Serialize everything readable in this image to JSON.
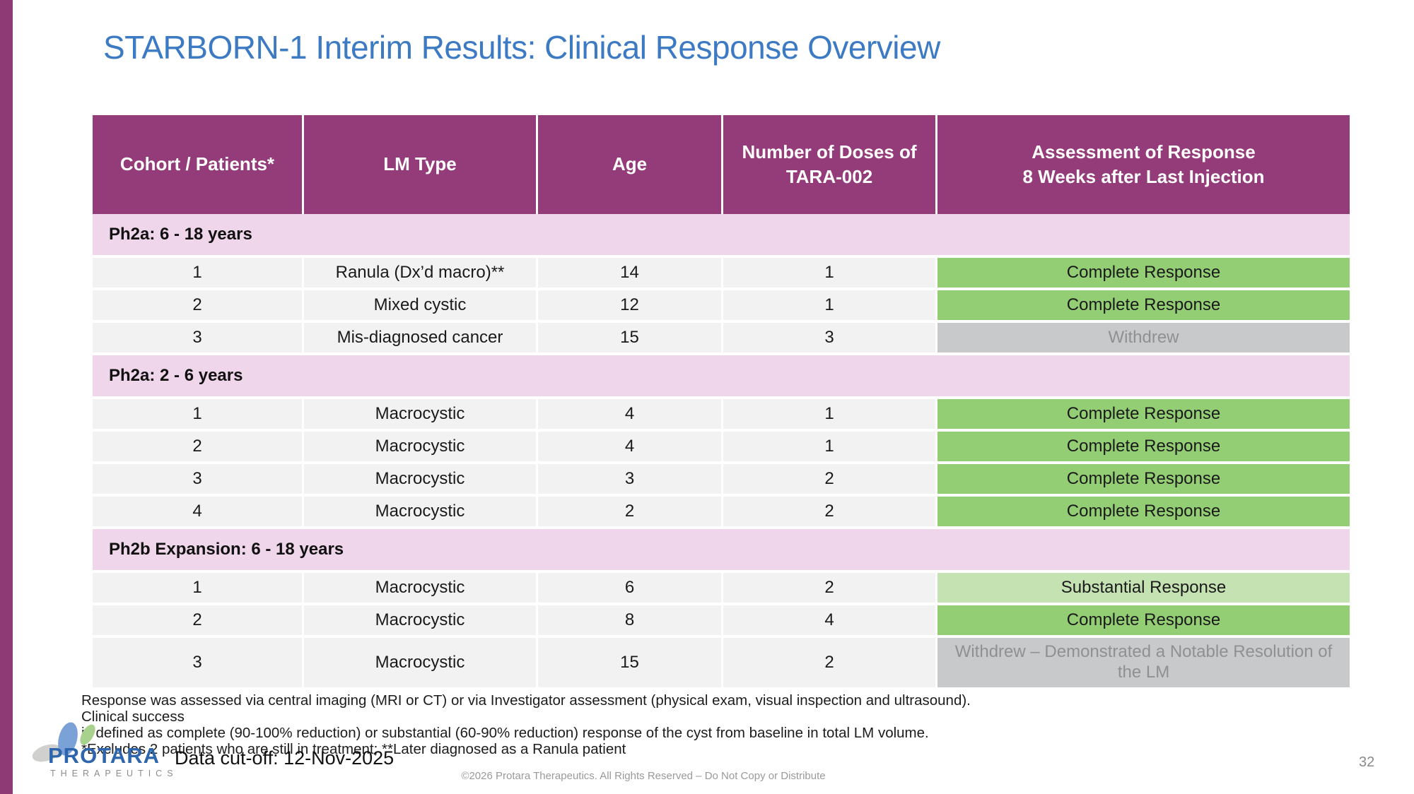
{
  "slide": {
    "title": "STARBORN-1 Interim Results: Clinical Response Overview",
    "data_cutoff": "Data cut-off: 12-Nov-2025",
    "copyright": "©2026 Protara Therapeutics. All Rights Reserved – Do Not Copy or Distribute",
    "page_number": "32"
  },
  "logo": {
    "name": "PROTARA",
    "subtitle": "THERAPEUTICS"
  },
  "colors": {
    "accent_bar": "#8e3a74",
    "title_blue": "#3d7ac4",
    "header_bg": "#943b7a",
    "section_bg": "#f0d6eb",
    "row_bg": "#f2f2f2",
    "complete_green": "#93ce75",
    "substantial_green": "#c5e2b3",
    "withdrew_gray": "#c8c9ca",
    "withdrew_text": "#8e9092"
  },
  "table": {
    "columns": [
      "Cohort / Patients*",
      "LM Type",
      "Age",
      "Number of Doses of\nTARA-002",
      "Assessment of Response\n8 Weeks after Last Injection"
    ],
    "sections": [
      {
        "label": "Ph2a: 6 - 18 years",
        "rows": [
          {
            "patient": "1",
            "lm_type": "Ranula (Dx’d macro)**",
            "age": "14",
            "doses": "1",
            "response": "Complete Response",
            "response_type": "complete",
            "tall": false
          },
          {
            "patient": "2",
            "lm_type": "Mixed cystic",
            "age": "12",
            "doses": "1",
            "response": "Complete Response",
            "response_type": "complete",
            "tall": false
          },
          {
            "patient": "3",
            "lm_type": "Mis-diagnosed cancer",
            "age": "15",
            "doses": "3",
            "response": "Withdrew",
            "response_type": "withdrew",
            "tall": false
          }
        ]
      },
      {
        "label": "Ph2a: 2 - 6 years",
        "rows": [
          {
            "patient": "1",
            "lm_type": "Macrocystic",
            "age": "4",
            "doses": "1",
            "response": "Complete Response",
            "response_type": "complete",
            "tall": false
          },
          {
            "patient": "2",
            "lm_type": "Macrocystic",
            "age": "4",
            "doses": "1",
            "response": "Complete Response",
            "response_type": "complete",
            "tall": false
          },
          {
            "patient": "3",
            "lm_type": "Macrocystic",
            "age": "3",
            "doses": "2",
            "response": "Complete Response",
            "response_type": "complete",
            "tall": false
          },
          {
            "patient": "4",
            "lm_type": "Macrocystic",
            "age": "2",
            "doses": "2",
            "response": "Complete Response",
            "response_type": "complete",
            "tall": false
          }
        ]
      },
      {
        "label": "Ph2b Expansion: 6 - 18 years",
        "rows": [
          {
            "patient": "1",
            "lm_type": "Macrocystic",
            "age": "6",
            "doses": "2",
            "response": "Substantial Response",
            "response_type": "substantial",
            "tall": false
          },
          {
            "patient": "2",
            "lm_type": "Macrocystic",
            "age": "8",
            "doses": "4",
            "response": "Complete Response",
            "response_type": "complete",
            "tall": false
          },
          {
            "patient": "3",
            "lm_type": "Macrocystic",
            "age": "15",
            "doses": "2",
            "response": "Withdrew – Demonstrated a Notable Resolution of the LM",
            "response_type": "withdrew",
            "tall": true
          }
        ]
      }
    ]
  },
  "footnotes": {
    "line1": "Response was assessed via central imaging (MRI or CT) or via Investigator assessment (physical exam, visual inspection and ultrasound). Clinical success",
    "line2": "is defined as complete (90-100% reduction) or substantial (60-90% reduction) response of the cyst from baseline in total LM volume.",
    "line3": "*Excludes 2 patients who are still in treatment; **Later diagnosed as a Ranula patient"
  }
}
